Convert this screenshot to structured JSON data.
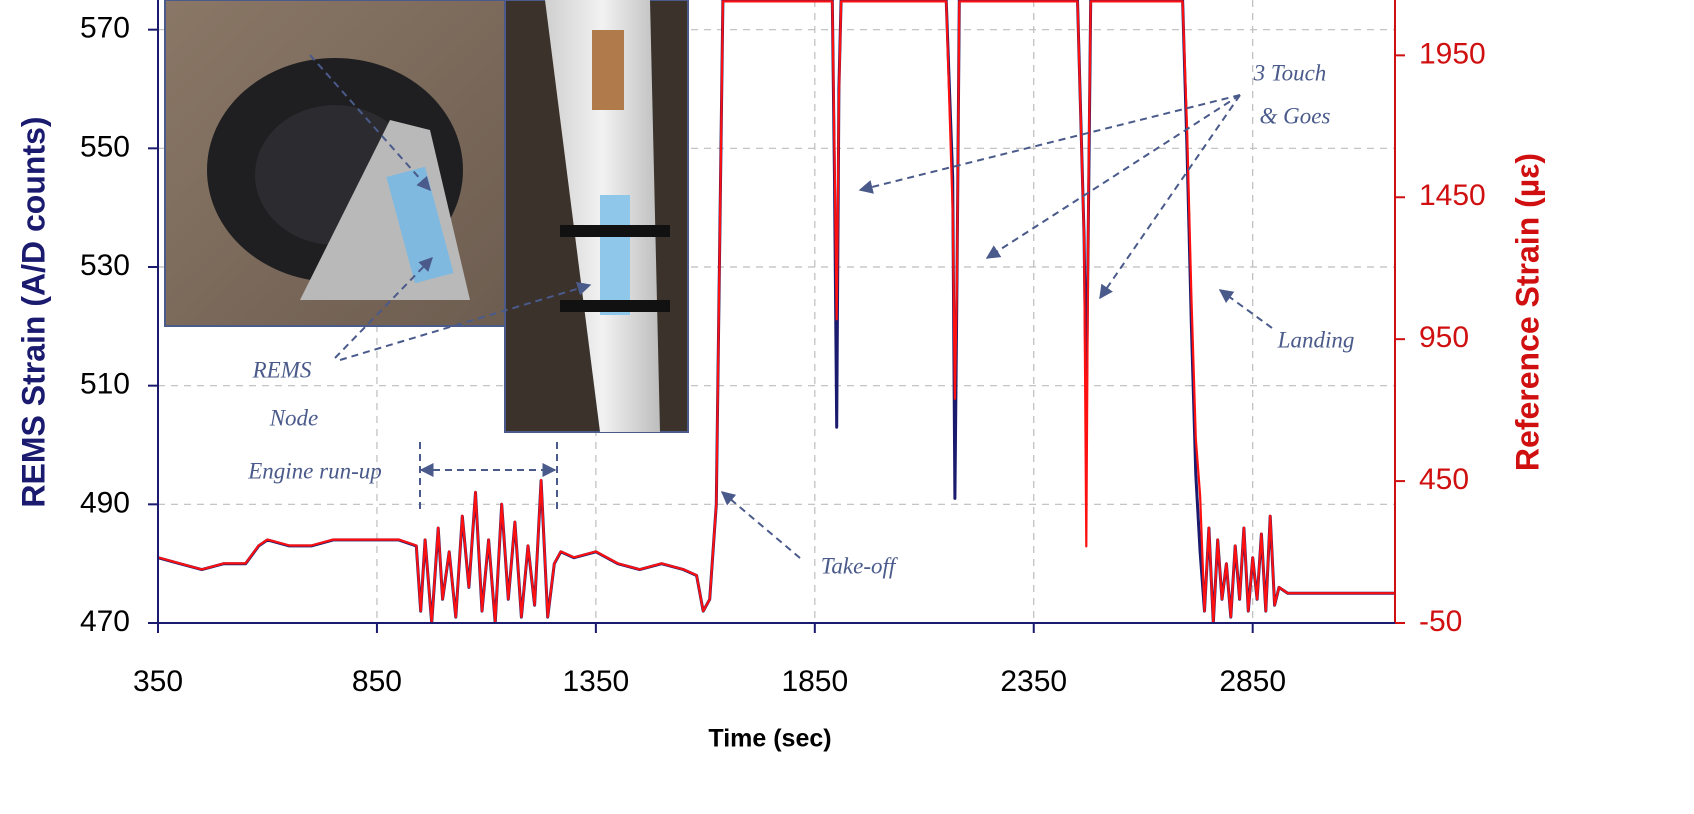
{
  "chart_data": {
    "type": "line",
    "xlabel": "Time (sec)",
    "ylabel": "REMS Strain (A/D counts)",
    "y2label": "Reference Strain (µε)",
    "xlim": [
      350,
      3175
    ],
    "xticks": [
      350,
      850,
      1350,
      1850,
      2350,
      2850
    ],
    "ylim": [
      470,
      575
    ],
    "yticks": [
      470,
      490,
      510,
      530,
      550,
      570
    ],
    "y2lim": [
      -50,
      2145
    ],
    "y2ticks": [
      -50,
      450,
      950,
      1450,
      1950
    ],
    "grid": true,
    "annotations": [
      "3 Touch",
      "& Goes",
      "Landing",
      "Take-off",
      "Engine run-up",
      "REMS",
      "Node"
    ],
    "x": [
      350,
      400,
      450,
      500,
      550,
      580,
      600,
      650,
      700,
      750,
      800,
      850,
      900,
      940,
      950,
      960,
      975,
      990,
      1000,
      1015,
      1030,
      1045,
      1060,
      1075,
      1090,
      1105,
      1120,
      1135,
      1150,
      1165,
      1180,
      1195,
      1210,
      1225,
      1240,
      1255,
      1270,
      1300,
      1350,
      1400,
      1450,
      1500,
      1550,
      1580,
      1595,
      1610,
      1625,
      1640,
      1660,
      1700,
      1800,
      1890,
      1895,
      1900,
      1905,
      1910,
      1950,
      2050,
      2150,
      2165,
      2170,
      2175,
      2180,
      2250,
      2350,
      2450,
      2465,
      2470,
      2475,
      2480,
      2550,
      2650,
      2690,
      2700,
      2710,
      2720,
      2730,
      2740,
      2750,
      2760,
      2770,
      2780,
      2790,
      2800,
      2810,
      2820,
      2830,
      2840,
      2850,
      2860,
      2870,
      2880,
      2890,
      2900,
      2910,
      2930,
      2950,
      3000,
      3050,
      3100,
      3175
    ],
    "series": [
      {
        "color": "#1a1a6e",
        "axis": "y",
        "values": [
          481,
          480,
          479,
          480,
          480,
          483,
          484,
          483,
          483,
          484,
          484,
          484,
          484,
          483,
          472,
          484,
          470,
          486,
          474,
          482,
          471,
          488,
          476,
          492,
          472,
          484,
          470,
          490,
          474,
          487,
          471,
          483,
          473,
          494,
          471,
          480,
          482,
          481,
          482,
          480,
          479,
          480,
          479,
          478,
          472,
          474,
          490,
          575,
          575,
          575,
          575,
          575,
          545,
          503,
          560,
          575,
          575,
          575,
          575,
          545,
          491,
          530,
          575,
          575,
          575,
          575,
          535,
          506,
          540,
          575,
          575,
          575,
          575,
          550,
          520,
          495,
          482,
          472,
          486,
          470,
          484,
          474,
          480,
          471,
          483,
          474,
          486,
          472,
          481,
          474,
          485,
          472,
          488,
          473,
          476,
          475,
          475,
          475,
          475,
          475,
          475
        ]
      },
      {
        "color": "#ff1010",
        "axis": "y2",
        "values": [
          181,
          160,
          139,
          160,
          160,
          223,
          244,
          223,
          223,
          244,
          244,
          244,
          244,
          223,
          -8,
          244,
          -50,
          286,
          34,
          202,
          -29,
          328,
          76,
          412,
          -8,
          244,
          -50,
          370,
          34,
          307,
          -29,
          223,
          13,
          454,
          -29,
          160,
          202,
          181,
          202,
          160,
          139,
          160,
          139,
          118,
          -8,
          34,
          370,
          2140,
          2140,
          2140,
          2140,
          2140,
          1600,
          1020,
          1800,
          2140,
          2140,
          2140,
          2140,
          1400,
          740,
          1200,
          2140,
          2140,
          2140,
          2140,
          1300,
          220,
          1500,
          2140,
          2140,
          2140,
          2140,
          1700,
          1100,
          600,
          400,
          -8,
          286,
          -50,
          244,
          34,
          160,
          -29,
          223,
          34,
          286,
          -8,
          181,
          34,
          265,
          -8,
          328,
          13,
          76,
          55,
          55,
          55,
          55,
          55,
          55
        ]
      }
    ]
  }
}
